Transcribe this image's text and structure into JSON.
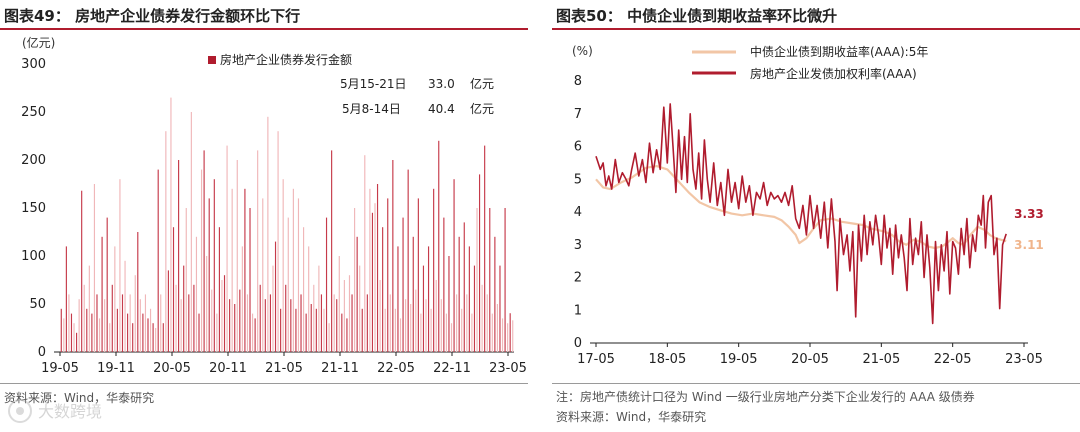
{
  "left": {
    "title": "图表49：  房地产企业债券发行金额环比下行",
    "source": "资料来源：Wind，华泰研究"
  },
  "right": {
    "title": "图表50：  中债企业债到期收益率环比微升",
    "note": "注：房地产债统计口径为 Wind 一级行业房地产分类下企业发行的 AAA 级债券",
    "source": "资料来源：Wind，华泰研究"
  },
  "watermark": "大数跨境",
  "chart_data": [
    {
      "type": "bar",
      "unit": "(亿元)",
      "ylim": [
        0,
        300
      ],
      "yticks": [
        0,
        50,
        100,
        150,
        200,
        250,
        300
      ],
      "xticks": [
        "19-05",
        "19-11",
        "20-05",
        "20-11",
        "21-05",
        "21-11",
        "22-05",
        "22-11",
        "23-05"
      ],
      "series": [
        {
          "name": "房地产企业债券发行金额",
          "color": "#b01c2e"
        }
      ],
      "annotations": [
        {
          "label": "5月15-21日",
          "value": "33.0",
          "unit": "亿元"
        },
        {
          "label": "5月8-14日",
          "value": "40.4",
          "unit": "亿元"
        }
      ],
      "weekly_values": [
        45,
        35,
        110,
        60,
        40,
        30,
        20,
        55,
        168,
        70,
        45,
        90,
        40,
        175,
        60,
        35,
        120,
        55,
        140,
        30,
        70,
        110,
        45,
        180,
        60,
        95,
        40,
        60,
        30,
        80,
        125,
        55,
        40,
        60,
        35,
        45,
        30,
        25,
        190,
        60,
        30,
        230,
        85,
        265,
        130,
        70,
        200,
        55,
        90,
        150,
        60,
        250,
        70,
        120,
        40,
        190,
        210,
        100,
        160,
        65,
        180,
        40,
        130,
        75,
        80,
        215,
        55,
        170,
        50,
        200,
        65,
        110,
        170,
        60,
        150,
        40,
        35,
        210,
        70,
        160,
        55,
        245,
        60,
        90,
        115,
        230,
        45,
        180,
        70,
        140,
        55,
        170,
        45,
        160,
        60,
        130,
        40,
        110,
        50,
        70,
        45,
        90,
        60,
        45,
        140,
        30,
        210,
        60,
        55,
        100,
        40,
        75,
        35,
        80,
        60,
        150,
        120,
        90,
        45,
        205,
        60,
        170,
        145,
        155,
        175,
        75,
        130,
        45,
        160,
        60,
        200,
        45,
        110,
        35,
        140,
        55,
        190,
        50,
        120,
        65,
        160,
        40,
        90,
        55,
        110,
        45,
        170,
        75,
        220,
        55,
        140,
        40,
        100,
        30,
        180,
        60,
        120,
        45,
        135,
        60,
        110,
        40,
        90,
        150,
        185,
        70,
        215,
        60,
        150,
        40,
        120,
        50,
        90,
        35,
        150,
        30,
        40.4,
        33.0
      ]
    },
    {
      "type": "line",
      "unit": "(%)",
      "ylim": [
        0,
        8
      ],
      "yticks": [
        0,
        1,
        2,
        3,
        4,
        5,
        6,
        7,
        8
      ],
      "xticks": [
        "17-05",
        "18-05",
        "19-05",
        "20-05",
        "21-05",
        "22-05",
        "23-05"
      ],
      "series": [
        {
          "name": "中债企业债到期收益率(AAA):5年",
          "color": "#f2c6a6",
          "last": "3.11",
          "points": [
            [
              0,
              5.0
            ],
            [
              0.1,
              4.75
            ],
            [
              0.2,
              4.7
            ],
            [
              0.35,
              4.9
            ],
            [
              0.5,
              5.05
            ],
            [
              0.6,
              5.2
            ],
            [
              0.7,
              5.35
            ],
            [
              0.85,
              5.4
            ],
            [
              1.0,
              5.3
            ],
            [
              1.15,
              4.95
            ],
            [
              1.3,
              4.6
            ],
            [
              1.45,
              4.3
            ],
            [
              1.6,
              4.15
            ],
            [
              1.75,
              4.05
            ],
            [
              1.9,
              3.95
            ],
            [
              2.05,
              3.9
            ],
            [
              2.2,
              3.95
            ],
            [
              2.35,
              3.9
            ],
            [
              2.5,
              3.85
            ],
            [
              2.6,
              3.75
            ],
            [
              2.7,
              3.55
            ],
            [
              2.8,
              3.3
            ],
            [
              2.85,
              3.05
            ],
            [
              2.95,
              3.2
            ],
            [
              3.05,
              3.5
            ],
            [
              3.15,
              3.75
            ],
            [
              3.3,
              3.8
            ],
            [
              3.45,
              3.7
            ],
            [
              3.6,
              3.65
            ],
            [
              3.75,
              3.6
            ],
            [
              3.85,
              3.5
            ],
            [
              3.95,
              3.45
            ],
            [
              4.05,
              3.4
            ],
            [
              4.15,
              3.3
            ],
            [
              4.25,
              3.1
            ],
            [
              4.35,
              3.0
            ],
            [
              4.45,
              3.15
            ],
            [
              4.55,
              3.1
            ],
            [
              4.65,
              2.95
            ],
            [
              4.75,
              2.9
            ],
            [
              4.85,
              2.95
            ],
            [
              4.92,
              3.05
            ],
            [
              5.0,
              3.2
            ],
            [
              5.08,
              3.05
            ],
            [
              5.15,
              3.0
            ],
            [
              5.25,
              3.3
            ],
            [
              5.35,
              3.55
            ],
            [
              5.45,
              3.45
            ],
            [
              5.52,
              3.3
            ],
            [
              5.6,
              3.2
            ],
            [
              5.68,
              3.15
            ],
            [
              5.75,
              3.11
            ]
          ]
        },
        {
          "name": "房地产企业发债加权利率(AAA)",
          "color": "#b01c2e",
          "last": "3.33",
          "points": [
            [
              0,
              5.7
            ],
            [
              0.06,
              5.3
            ],
            [
              0.1,
              5.5
            ],
            [
              0.14,
              4.8
            ],
            [
              0.18,
              5.1
            ],
            [
              0.22,
              4.7
            ],
            [
              0.27,
              5.6
            ],
            [
              0.32,
              4.9
            ],
            [
              0.37,
              5.2
            ],
            [
              0.42,
              5.0
            ],
            [
              0.46,
              4.8
            ],
            [
              0.5,
              5.3
            ],
            [
              0.55,
              5.8
            ],
            [
              0.6,
              5.1
            ],
            [
              0.65,
              5.6
            ],
            [
              0.7,
              4.9
            ],
            [
              0.75,
              6.1
            ],
            [
              0.8,
              5.2
            ],
            [
              0.85,
              5.9
            ],
            [
              0.9,
              5.3
            ],
            [
              0.95,
              7.2
            ],
            [
              1.0,
              5.5
            ],
            [
              1.04,
              7.3
            ],
            [
              1.08,
              6.0
            ],
            [
              1.12,
              4.6
            ],
            [
              1.16,
              6.5
            ],
            [
              1.2,
              5.0
            ],
            [
              1.24,
              6.3
            ],
            [
              1.28,
              4.9
            ],
            [
              1.32,
              7.0
            ],
            [
              1.36,
              5.3
            ],
            [
              1.4,
              4.7
            ],
            [
              1.44,
              5.8
            ],
            [
              1.48,
              4.4
            ],
            [
              1.52,
              6.2
            ],
            [
              1.56,
              5.0
            ],
            [
              1.6,
              4.3
            ],
            [
              1.65,
              5.5
            ],
            [
              1.7,
              4.2
            ],
            [
              1.75,
              4.9
            ],
            [
              1.8,
              3.9
            ],
            [
              1.85,
              5.3
            ],
            [
              1.9,
              4.3
            ],
            [
              1.95,
              4.9
            ],
            [
              2.0,
              4.1
            ],
            [
              2.05,
              5.1
            ],
            [
              2.1,
              4.3
            ],
            [
              2.15,
              4.8
            ],
            [
              2.2,
              3.9
            ],
            [
              2.25,
              4.6
            ],
            [
              2.3,
              4.4
            ],
            [
              2.35,
              4.9
            ],
            [
              2.4,
              4.2
            ],
            [
              2.45,
              4.6
            ],
            [
              2.5,
              4.4
            ],
            [
              2.55,
              4.5
            ],
            [
              2.6,
              4.3
            ],
            [
              2.65,
              4.6
            ],
            [
              2.7,
              4.2
            ],
            [
              2.75,
              4.8
            ],
            [
              2.8,
              3.8
            ],
            [
              2.85,
              3.5
            ],
            [
              2.9,
              4.2
            ],
            [
              2.95,
              3.3
            ],
            [
              3.0,
              4.5
            ],
            [
              3.05,
              3.5
            ],
            [
              3.1,
              4.2
            ],
            [
              3.15,
              3.2
            ],
            [
              3.2,
              4.3
            ],
            [
              3.25,
              2.9
            ],
            [
              3.3,
              4.4
            ],
            [
              3.35,
              3.1
            ],
            [
              3.38,
              1.6
            ],
            [
              3.42,
              3.8
            ],
            [
              3.47,
              2.7
            ],
            [
              3.52,
              3.3
            ],
            [
              3.56,
              2.2
            ],
            [
              3.6,
              3.4
            ],
            [
              3.64,
              0.8
            ],
            [
              3.68,
              3.6
            ],
            [
              3.72,
              2.5
            ],
            [
              3.76,
              3.9
            ],
            [
              3.8,
              2.7
            ],
            [
              3.84,
              3.7
            ],
            [
              3.88,
              3.0
            ],
            [
              3.92,
              3.9
            ],
            [
              3.96,
              3.3
            ],
            [
              4.0,
              2.4
            ],
            [
              4.04,
              3.9
            ],
            [
              4.08,
              2.9
            ],
            [
              4.12,
              3.5
            ],
            [
              4.16,
              2.1
            ],
            [
              4.2,
              3.6
            ],
            [
              4.24,
              2.6
            ],
            [
              4.28,
              3.3
            ],
            [
              4.32,
              2.6
            ],
            [
              4.36,
              1.6
            ],
            [
              4.4,
              3.8
            ],
            [
              4.44,
              2.4
            ],
            [
              4.48,
              3.2
            ],
            [
              4.52,
              2.7
            ],
            [
              4.56,
              3.7
            ],
            [
              4.6,
              2.0
            ],
            [
              4.64,
              3.3
            ],
            [
              4.68,
              2.3
            ],
            [
              4.72,
              0.6
            ],
            [
              4.76,
              3.1
            ],
            [
              4.8,
              1.6
            ],
            [
              4.84,
              3.0
            ],
            [
              4.88,
              2.2
            ],
            [
              4.92,
              3.4
            ],
            [
              4.96,
              1.5
            ],
            [
              5.0,
              3.1
            ],
            [
              5.04,
              2.9
            ],
            [
              5.08,
              2.1
            ],
            [
              5.12,
              3.5
            ],
            [
              5.16,
              2.7
            ],
            [
              5.2,
              3.8
            ],
            [
              5.24,
              2.3
            ],
            [
              5.28,
              3.3
            ],
            [
              5.32,
              2.8
            ],
            [
              5.36,
              3.9
            ],
            [
              5.4,
              3.6
            ],
            [
              5.43,
              4.5
            ],
            [
              5.46,
              2.9
            ],
            [
              5.5,
              4.3
            ],
            [
              5.54,
              4.5
            ],
            [
              5.58,
              2.7
            ],
            [
              5.62,
              3.2
            ],
            [
              5.66,
              1.05
            ],
            [
              5.7,
              3.0
            ],
            [
              5.75,
              3.33
            ]
          ]
        }
      ]
    }
  ]
}
